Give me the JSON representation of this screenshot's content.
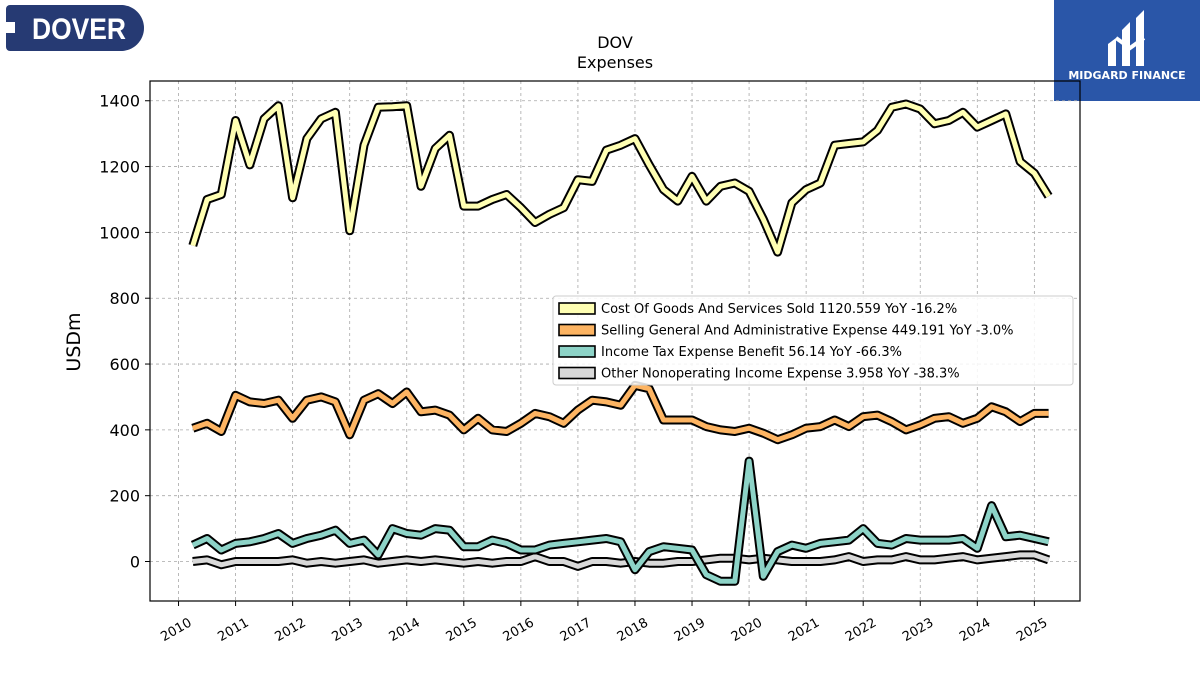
{
  "logos": {
    "left_text": "DOVER",
    "right_text": "MIDGARD FINANCE"
  },
  "colors": {
    "cogs": "#ffffb3",
    "sga": "#fdb462",
    "tax": "#8dd3c7",
    "other": "#d9d9d9",
    "outline": "#000000",
    "dover_navy": "#263a73",
    "midgard_blue": "#2a56a8"
  },
  "chart_data": {
    "type": "line",
    "title": "DOV",
    "subtitle": "Expenses",
    "xlabel": "",
    "ylabel": "USDm",
    "xlim": [
      2009.5,
      2025.8
    ],
    "ylim": [
      -120,
      1460
    ],
    "grid": true,
    "legend_position": "center-right",
    "xticks": [
      "2010",
      "2011",
      "2012",
      "2013",
      "2014",
      "2015",
      "2016",
      "2017",
      "2018",
      "2019",
      "2020",
      "2021",
      "2022",
      "2023",
      "2024",
      "2025"
    ],
    "yticks": [
      "0",
      "200",
      "400",
      "600",
      "800",
      "1000",
      "1200",
      "1400"
    ],
    "x": [
      2010.25,
      2010.5,
      2010.75,
      2011,
      2011.25,
      2011.5,
      2011.75,
      2012,
      2012.25,
      2012.5,
      2012.75,
      2013,
      2013.25,
      2013.5,
      2013.75,
      2014,
      2014.25,
      2014.5,
      2014.75,
      2015,
      2015.25,
      2015.5,
      2015.75,
      2016,
      2016.25,
      2016.5,
      2016.75,
      2017,
      2017.25,
      2017.5,
      2017.75,
      2018,
      2018.25,
      2018.5,
      2018.75,
      2019,
      2019.25,
      2019.5,
      2019.75,
      2020,
      2020.25,
      2020.5,
      2020.75,
      2021,
      2021.25,
      2021.5,
      2021.75,
      2022,
      2022.25,
      2022.5,
      2022.75,
      2023,
      2023.25,
      2023.5,
      2023.75,
      2024,
      2024.25,
      2024.5,
      2024.75,
      2025,
      2025.25
    ],
    "series": [
      {
        "name": "Cost Of Goods And Services Sold",
        "legend": "Cost Of Goods And Services Sold  1120.559 YoY -16.2%",
        "color_key": "cogs",
        "values": [
          960,
          1100,
          1115,
          1340,
          1205,
          1345,
          1385,
          1105,
          1285,
          1345,
          1365,
          1005,
          1265,
          1380,
          1382,
          1385,
          1140,
          1255,
          1295,
          1080,
          1080,
          1100,
          1115,
          1075,
          1030,
          1055,
          1075,
          1160,
          1155,
          1250,
          1265,
          1285,
          1205,
          1130,
          1095,
          1170,
          1095,
          1140,
          1150,
          1125,
          1040,
          940,
          1090,
          1130,
          1150,
          1265,
          1270,
          1275,
          1310,
          1380,
          1390,
          1375,
          1330,
          1340,
          1365,
          1320,
          1340,
          1360,
          1215,
          1180,
          1110
        ]
      },
      {
        "name": "Selling General And Administrative Expense",
        "legend": "Selling General And Administrative Expense  449.191 YoY -3.0%",
        "color_key": "sga",
        "values": [
          405,
          420,
          395,
          505,
          485,
          480,
          490,
          435,
          490,
          500,
          485,
          385,
          490,
          510,
          480,
          515,
          455,
          460,
          445,
          400,
          435,
          400,
          395,
          420,
          450,
          440,
          420,
          460,
          490,
          485,
          475,
          535,
          525,
          430,
          430,
          430,
          410,
          400,
          395,
          405,
          390,
          370,
          385,
          405,
          410,
          430,
          410,
          440,
          445,
          425,
          400,
          415,
          435,
          440,
          420,
          435,
          470,
          455,
          425,
          450,
          450
        ]
      },
      {
        "name": "Income Tax Expense Benefit",
        "legend": "Income Tax Expense Benefit  56.14 YoY -66.3%",
        "color_key": "tax",
        "values": [
          50,
          70,
          35,
          55,
          60,
          70,
          85,
          55,
          70,
          80,
          95,
          55,
          65,
          20,
          100,
          85,
          80,
          100,
          95,
          45,
          45,
          65,
          55,
          35,
          35,
          50,
          55,
          60,
          65,
          70,
          60,
          -25,
          30,
          45,
          40,
          35,
          -40,
          -60,
          -60,
          305,
          -45,
          30,
          50,
          40,
          55,
          60,
          65,
          100,
          55,
          50,
          70,
          65,
          65,
          65,
          70,
          40,
          170,
          75,
          80,
          70,
          60
        ]
      },
      {
        "name": "Other Nonoperating Income Expense",
        "legend": "Other Nonoperating Income Expense  3.958 YoY -38.3%",
        "color_key": "other",
        "values": [
          0,
          5,
          -10,
          0,
          0,
          0,
          0,
          5,
          -5,
          0,
          -5,
          0,
          5,
          -5,
          0,
          5,
          0,
          5,
          0,
          -5,
          0,
          -5,
          0,
          0,
          15,
          0,
          0,
          -15,
          0,
          0,
          -5,
          0,
          -5,
          -5,
          0,
          0,
          5,
          10,
          10,
          5,
          10,
          5,
          0,
          0,
          0,
          5,
          15,
          0,
          5,
          5,
          15,
          5,
          5,
          10,
          15,
          5,
          10,
          15,
          20,
          20,
          5
        ]
      }
    ]
  }
}
